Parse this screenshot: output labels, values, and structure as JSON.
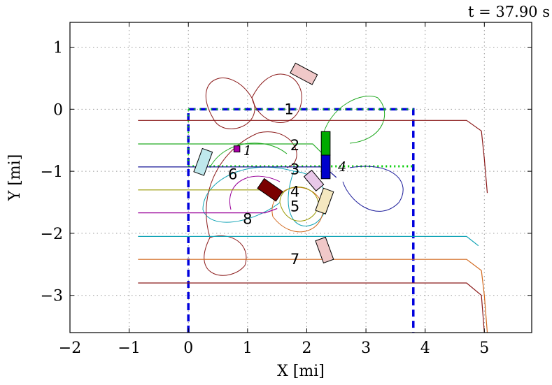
{
  "chart_data": {
    "type": "line",
    "time_label": "t = 37.90 s",
    "xlabel": "X [mi]",
    "ylabel": "Y [mi]",
    "xlim": [
      -2,
      5.8
    ],
    "ylim": [
      -3.6,
      1.4
    ],
    "xticks": [
      -2,
      -1,
      0,
      1,
      2,
      3,
      4,
      5
    ],
    "yticks": [
      1,
      0,
      -1,
      -2,
      -3
    ],
    "grid": true,
    "region": {
      "outer": [
        [
          0,
          0
        ],
        [
          3.8,
          0
        ],
        [
          3.8,
          -3.6
        ],
        [
          0,
          -3.6
        ]
      ],
      "inner": [
        [
          0,
          -0.92
        ],
        [
          3.8,
          -0.92
        ]
      ],
      "outer_color": "#0000dd",
      "inner_color": "#00cc00"
    },
    "series": [
      {
        "color": "#8b1a1a",
        "points": [
          [
            -0.85,
            -0.18
          ],
          [
            4.7,
            -0.18
          ],
          [
            4.95,
            -0.35
          ],
          [
            5.0,
            -0.8
          ],
          [
            5.05,
            -1.35
          ]
        ]
      },
      {
        "color": "#22aa22",
        "points": [
          [
            -0.85,
            -0.56
          ],
          [
            2.1,
            -0.56
          ],
          [
            2.25,
            -0.7
          ],
          [
            2.3,
            -0.9
          ]
        ]
      },
      {
        "color": "#1a1a99",
        "points": [
          [
            -0.85,
            -0.93
          ],
          [
            2.3,
            -0.93
          ],
          [
            2.5,
            -1.1
          ]
        ]
      },
      {
        "color": "#999900",
        "points": [
          [
            -0.85,
            -1.3
          ],
          [
            1.4,
            -1.3
          ],
          [
            1.6,
            -1.35
          ]
        ]
      },
      {
        "color": "#990099",
        "points": [
          [
            -0.85,
            -1.67
          ],
          [
            1.3,
            -1.67
          ],
          [
            1.5,
            -1.6
          ]
        ]
      },
      {
        "color": "#11a3b5",
        "points": [
          [
            -0.85,
            -2.05
          ],
          [
            4.7,
            -2.05
          ],
          [
            4.9,
            -2.2
          ]
        ]
      },
      {
        "color": "#d2691e",
        "points": [
          [
            -0.85,
            -2.42
          ],
          [
            4.7,
            -2.42
          ],
          [
            4.95,
            -2.6
          ],
          [
            5.0,
            -3.0
          ],
          [
            5.05,
            -3.6
          ]
        ]
      },
      {
        "color": "#8b1a1a",
        "points": [
          [
            -0.85,
            -2.8
          ],
          [
            4.7,
            -2.8
          ],
          [
            4.95,
            -3.0
          ],
          [
            5.0,
            -3.6
          ]
        ]
      }
    ],
    "annotations": [
      {
        "text": "1",
        "x": 1.7,
        "y": 0.0,
        "style": "normal"
      },
      {
        "text": "2",
        "x": 1.8,
        "y": -0.58,
        "style": "normal"
      },
      {
        "text": "3",
        "x": 1.8,
        "y": -0.97,
        "style": "normal"
      },
      {
        "text": "4",
        "x": 1.8,
        "y": -1.33,
        "style": "normal"
      },
      {
        "text": "5",
        "x": 1.8,
        "y": -1.57,
        "style": "normal"
      },
      {
        "text": "6",
        "x": 0.75,
        "y": -1.05,
        "style": "normal"
      },
      {
        "text": "7",
        "x": 1.8,
        "y": -2.42,
        "style": "normal"
      },
      {
        "text": "8",
        "x": 1.0,
        "y": -1.77,
        "style": "normal"
      },
      {
        "text": "1",
        "x": 1.0,
        "y": -0.66,
        "style": "italic"
      },
      {
        "text": "4",
        "x": 2.6,
        "y": -0.92,
        "style": "italic"
      }
    ],
    "vehicles": [
      {
        "color": "#f0c8c8",
        "x": 1.95,
        "y": 0.57,
        "w": 0.42,
        "h": 0.18,
        "angle": 28
      },
      {
        "color": "#bfe8ec",
        "x": 0.25,
        "y": -0.85,
        "w": 0.18,
        "h": 0.4,
        "angle": 20
      },
      {
        "color": "#00aa00",
        "x": 2.32,
        "y": -0.55,
        "w": 0.15,
        "h": 0.38,
        "angle": 0
      },
      {
        "color": "#0000cc",
        "x": 2.32,
        "y": -0.93,
        "w": 0.15,
        "h": 0.38,
        "angle": 0
      },
      {
        "color": "#7a0000",
        "x": 1.38,
        "y": -1.3,
        "w": 0.38,
        "h": 0.19,
        "angle": 35
      },
      {
        "color": "#f5e8c0",
        "x": 2.3,
        "y": -1.48,
        "w": 0.18,
        "h": 0.38,
        "angle": 20
      },
      {
        "color": "#f0c8c8",
        "x": 2.3,
        "y": -2.27,
        "w": 0.18,
        "h": 0.38,
        "angle": -20
      },
      {
        "color": "#e8c8e8",
        "x": 2.12,
        "y": -1.15,
        "w": 0.17,
        "h": 0.3,
        "angle": -40
      },
      {
        "color": "#aa00aa",
        "x": 0.82,
        "y": -0.64,
        "w": 0.1,
        "h": 0.1,
        "angle": 0
      }
    ]
  }
}
